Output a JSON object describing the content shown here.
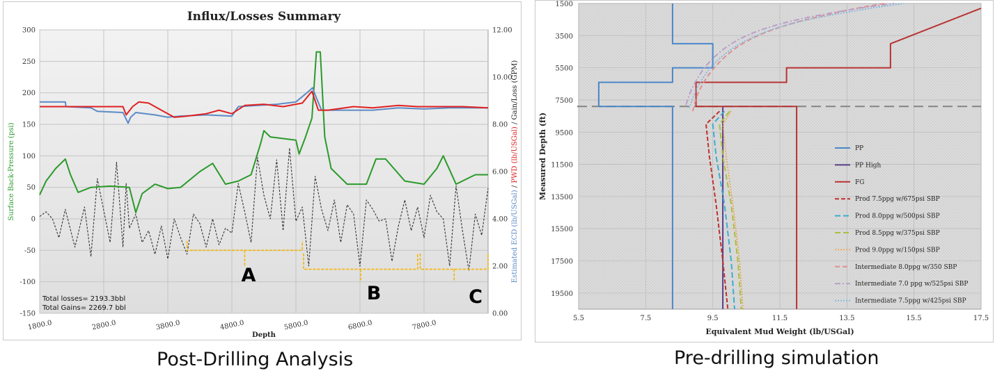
{
  "captions": {
    "left": "Post-Drilling Analysis",
    "right": "Pre-drilling simulation"
  },
  "colors": {
    "ecd_blue": "#5b8ac6",
    "pwd_red": "#e02020",
    "sbp_green": "#2a9a2a",
    "gain_loss_black": "#333333",
    "bracket_orange": "#f5b400",
    "pp_blue": "#4a86c8",
    "pp_high_purple": "#5a3e8a",
    "fg_red": "#b83232",
    "prod_75_red": "#c0302a",
    "prod_80_cyan": "#3aaed0",
    "prod_85_olive": "#a8c040",
    "prod_90_orange": "#f0a040",
    "int_80_pink": "#e09090",
    "int_70_lilac": "#b8a0c8",
    "int_75_lightblue": "#80b8e0"
  },
  "chart_data": [
    {
      "type": "line",
      "title": "Influx/Losses Summary",
      "xlabel": "Depth",
      "ylabel": "Surface Back-Pressure (psi)",
      "y2label_parts": [
        "Estimated ECD (lb/USGal)",
        " / ",
        "PWD (lb/USGal)",
        " / Gain/Loss (GPM)"
      ],
      "xlim": [
        1800,
        8800
      ],
      "ylim": [
        -150,
        300
      ],
      "y2lim": [
        0,
        12
      ],
      "x_ticks": [
        "1800.0",
        "2800.0",
        "3800.0",
        "4800.0",
        "5800.0",
        "6800.0",
        "7800.0"
      ],
      "y_ticks": [
        "300",
        "250",
        "200",
        "150",
        "100",
        "50",
        "0",
        "-50",
        "-100",
        "-150"
      ],
      "y2_ticks": [
        "12.00",
        "10.00",
        "8.00",
        "6.00",
        "4.00",
        "2.00",
        "0.00"
      ],
      "annotations": [
        "A",
        "B",
        "C"
      ],
      "text_notes": [
        "Total losses= 2193.3bbl",
        "Total Gains= 2269.7 bbl"
      ],
      "series": [
        {
          "name": "Estimated ECD",
          "axis": "right",
          "x": [
            1800,
            2200,
            2210,
            2600,
            2700,
            3100,
            3180,
            3220,
            3300,
            3600,
            3800,
            4000,
            4400,
            4800,
            4900,
            5200,
            5500,
            5800,
            6000,
            6060,
            6100,
            6200,
            6600,
            7000,
            7400,
            7800,
            8200,
            8500,
            8800
          ],
          "y": [
            8.95,
            8.95,
            8.75,
            8.7,
            8.55,
            8.5,
            8.05,
            8.3,
            8.5,
            8.4,
            8.3,
            8.35,
            8.4,
            8.35,
            8.75,
            8.8,
            8.85,
            8.95,
            9.4,
            9.55,
            9.25,
            8.6,
            8.6,
            8.6,
            8.7,
            8.65,
            8.7,
            8.7,
            8.7
          ]
        },
        {
          "name": "PWD",
          "axis": "right",
          "x": [
            1800,
            3100,
            3150,
            3250,
            3350,
            3500,
            3700,
            3900,
            4100,
            4400,
            4600,
            4800,
            5000,
            5300,
            5600,
            5900,
            6050,
            6150,
            6300,
            6700,
            7000,
            7400,
            7700,
            8000,
            8400,
            8800
          ],
          "y": [
            8.75,
            8.75,
            8.4,
            8.75,
            8.95,
            8.9,
            8.6,
            8.3,
            8.35,
            8.45,
            8.6,
            8.45,
            8.8,
            8.85,
            8.75,
            8.9,
            9.4,
            8.6,
            8.6,
            8.75,
            8.7,
            8.8,
            8.75,
            8.75,
            8.75,
            8.7
          ]
        },
        {
          "name": "Surface Back-Pressure",
          "axis": "left",
          "x": [
            1800,
            1900,
            2050,
            2200,
            2280,
            2400,
            2600,
            2900,
            3200,
            3300,
            3400,
            3600,
            3800,
            4000,
            4300,
            4500,
            4700,
            4900,
            5100,
            5250,
            5300,
            5400,
            5800,
            5850,
            5950,
            6050,
            6120,
            6180,
            6250,
            6350,
            6600,
            6900,
            7050,
            7200,
            7500,
            7800,
            8000,
            8100,
            8300,
            8600,
            8800
          ],
          "y": [
            38,
            60,
            80,
            95,
            70,
            42,
            50,
            52,
            50,
            10,
            40,
            55,
            48,
            50,
            75,
            88,
            55,
            60,
            70,
            120,
            140,
            130,
            125,
            103,
            130,
            160,
            265,
            265,
            130,
            80,
            55,
            55,
            95,
            95,
            60,
            55,
            80,
            100,
            55,
            70,
            70
          ]
        },
        {
          "name": "Gain/Loss",
          "axis": "right",
          "x": [
            1800,
            1900,
            2000,
            2100,
            2200,
            2350,
            2500,
            2600,
            2700,
            2900,
            3000,
            3100,
            3150,
            3200,
            3300,
            3400,
            3500,
            3600,
            3700,
            3800,
            3900,
            4000,
            4100,
            4200,
            4300,
            4400,
            4500,
            4600,
            4700,
            4800,
            4900,
            5000,
            5100,
            5200,
            5300,
            5400,
            5500,
            5600,
            5700,
            5800,
            5900,
            6000,
            6100,
            6200,
            6300,
            6400,
            6500,
            6600,
            6700,
            6800,
            6900,
            7000,
            7100,
            7200,
            7300,
            7400,
            7500,
            7600,
            7700,
            7800,
            7900,
            8000,
            8100,
            8200,
            8300,
            8400,
            8500,
            8600,
            8700,
            8800
          ],
          "y": [
            4.1,
            4.3,
            4.0,
            3.2,
            4.4,
            2.8,
            4.5,
            2.4,
            5.7,
            3.0,
            6.4,
            2.8,
            5.5,
            3.6,
            4.2,
            3.0,
            3.5,
            2.5,
            3.7,
            2.3,
            4.0,
            3.2,
            2.5,
            4.2,
            3.8,
            2.8,
            4.0,
            2.9,
            3.6,
            3.4,
            5.5,
            4.3,
            3.0,
            6.6,
            5.0,
            4.0,
            6.5,
            3.5,
            7.0,
            3.9,
            4.5,
            2.0,
            5.8,
            4.4,
            3.5,
            4.8,
            3.0,
            4.6,
            4.2,
            2.0,
            4.8,
            4.4,
            3.9,
            4.0,
            2.2,
            3.7,
            4.8,
            3.5,
            4.5,
            3.2,
            5.0,
            4.3,
            4.0,
            2.0,
            5.4,
            3.5,
            1.8,
            4.2,
            3.3,
            5.3
          ]
        }
      ],
      "legend": []
    },
    {
      "type": "line",
      "title": "",
      "xlabel": "Equivalent Mud Weight (lb/USGal)",
      "ylabel": "Measured Depth (ft)",
      "xlim": [
        5.5,
        17.5
      ],
      "ylim": [
        1500,
        20500
      ],
      "y_inverted": true,
      "x_ticks": [
        "5.5",
        "7.5",
        "9.5",
        "11.5",
        "13.5",
        "15.5",
        "17.5"
      ],
      "y_ticks": [
        "1500",
        "3500",
        "5500",
        "7500",
        "9500",
        "11500",
        "13500",
        "15500",
        "17500",
        "19500"
      ],
      "legend_position": "right",
      "legend": [
        "PP",
        "PP High",
        "FG",
        "Prod 7.5ppg w/675psi SBP",
        "Prod 8.0ppg w/500psi SBP",
        "Prod 8.5ppg w/375psi SBP",
        "Prod 9.0ppg w/150psi SBP",
        "Intermediate 8.0ppg w/350 SBP",
        "Intermediate 7.0 ppg w/525psi SBP",
        "Intermediate 7.5ppg w/425psi SBP"
      ],
      "casing_depth": 7900,
      "series": [
        {
          "name": "PP",
          "x": [
            8.3,
            8.3,
            9.5,
            9.5,
            8.3,
            8.3,
            6.1,
            6.1,
            8.3,
            8.3
          ],
          "y": [
            1500,
            4000,
            4000,
            5500,
            5500,
            6400,
            6400,
            7900,
            7900,
            20500
          ]
        },
        {
          "name": "PP High",
          "x": [
            9.8,
            9.8
          ],
          "y": [
            7900,
            20500
          ]
        },
        {
          "name": "FG",
          "x": [
            17.5,
            14.8,
            14.8,
            11.7,
            11.7,
            9.0,
            9.0,
            12.0,
            12.0
          ],
          "y": [
            1800,
            4000,
            5500,
            5500,
            6400,
            6400,
            7900,
            7900,
            20500
          ]
        },
        {
          "name": "Prod 7.5ppg w/675psi SBP",
          "x": [
            9.7,
            9.3,
            9.4,
            9.6,
            9.8,
            9.95
          ],
          "y": [
            8200,
            9000,
            11000,
            14000,
            17500,
            20500
          ]
        },
        {
          "name": "Prod 8.0ppg w/500psi SBP",
          "x": [
            9.85,
            9.5,
            9.6,
            9.85,
            10.05,
            10.15
          ],
          "y": [
            8200,
            9000,
            11000,
            14000,
            17500,
            20500
          ]
        },
        {
          "name": "Prod 8.5ppg w/375psi SBP",
          "x": [
            10.0,
            9.7,
            9.8,
            10.05,
            10.25,
            10.35
          ],
          "y": [
            8200,
            9000,
            11000,
            14000,
            17500,
            20500
          ]
        },
        {
          "name": "Prod 9.0ppg w/150psi SBP",
          "x": [
            10.05,
            9.8,
            9.9,
            10.1,
            10.3,
            10.4
          ],
          "y": [
            8200,
            9000,
            11000,
            14000,
            17500,
            20500
          ]
        },
        {
          "name": "Intermediate 8.0ppg w/350 SBP",
          "x": [
            8.9,
            9.05,
            9.5,
            10.3,
            11.5,
            13.5,
            14.6
          ],
          "y": [
            8200,
            7000,
            5500,
            4000,
            2900,
            1900,
            1500
          ]
        },
        {
          "name": "Intermediate 7.0 ppg w/525psi SBP",
          "x": [
            8.7,
            8.9,
            9.4,
            10.3,
            11.7,
            13.8,
            14.9
          ],
          "y": [
            7800,
            6600,
            5000,
            3600,
            2600,
            1800,
            1500
          ]
        },
        {
          "name": "Intermediate 7.5ppg w/425psi SBP",
          "x": [
            8.8,
            9.0,
            9.5,
            10.4,
            11.8,
            14.0,
            15.2
          ],
          "y": [
            8000,
            6800,
            5200,
            3800,
            2700,
            1850,
            1500
          ]
        }
      ]
    }
  ]
}
